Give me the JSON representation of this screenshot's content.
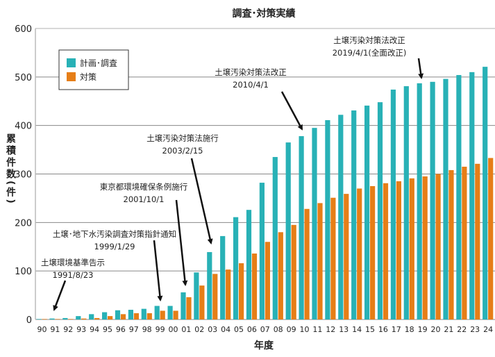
{
  "chart_data": {
    "type": "bar",
    "title": "調査･対策実績",
    "xlabel": "年度",
    "ylabel": "累積件数(件)",
    "ylim": [
      0,
      600
    ],
    "yticks": [
      0,
      100,
      200,
      300,
      400,
      500,
      600
    ],
    "grid": true,
    "legend_placement": "top-left",
    "categories": [
      "90",
      "91",
      "92",
      "93",
      "94",
      "95",
      "96",
      "97",
      "98",
      "99",
      "00",
      "01",
      "02",
      "03",
      "04",
      "05",
      "06",
      "07",
      "08",
      "09",
      "10",
      "11",
      "12",
      "13",
      "14",
      "15",
      "16",
      "17",
      "18",
      "19",
      "20",
      "21",
      "22",
      "23",
      "24"
    ],
    "series": [
      {
        "name": "計画･調査",
        "color": "#28b1b6",
        "values": [
          1,
          2,
          3,
          7,
          11,
          15,
          19,
          20,
          22,
          28,
          28,
          56,
          97,
          139,
          172,
          211,
          226,
          282,
          335,
          365,
          378,
          395,
          411,
          422,
          431,
          441,
          448,
          474,
          481,
          487,
          490,
          496,
          504,
          510,
          521
        ]
      },
      {
        "name": "対策",
        "color": "#e67e17",
        "values": [
          1,
          1,
          1,
          2,
          3,
          7,
          11,
          13,
          13,
          18,
          18,
          46,
          70,
          94,
          103,
          116,
          136,
          160,
          180,
          195,
          228,
          240,
          251,
          259,
          270,
          275,
          281,
          285,
          291,
          295,
          300,
          308,
          315,
          321,
          333
        ]
      }
    ],
    "annotations": [
      {
        "line1": "土壌環境基準告示",
        "line2": "1991/8/23",
        "category": "91"
      },
      {
        "line1": "土壌･地下水汚染調査対策指針通知",
        "line2": "1999/1/29",
        "category": "99"
      },
      {
        "line1": "東京都環境確保条例施行",
        "line2": "2001/10/1",
        "category": "01"
      },
      {
        "line1": "土壌汚染対策法施行",
        "line2": "2003/2/15",
        "category": "03"
      },
      {
        "line1": "土壌汚染対策法改正",
        "line2": "2010/4/1",
        "category": "10"
      },
      {
        "line1": "土壌汚染対策法改正",
        "line2": "2019/4/1(全面改正)",
        "category": "19"
      }
    ]
  }
}
